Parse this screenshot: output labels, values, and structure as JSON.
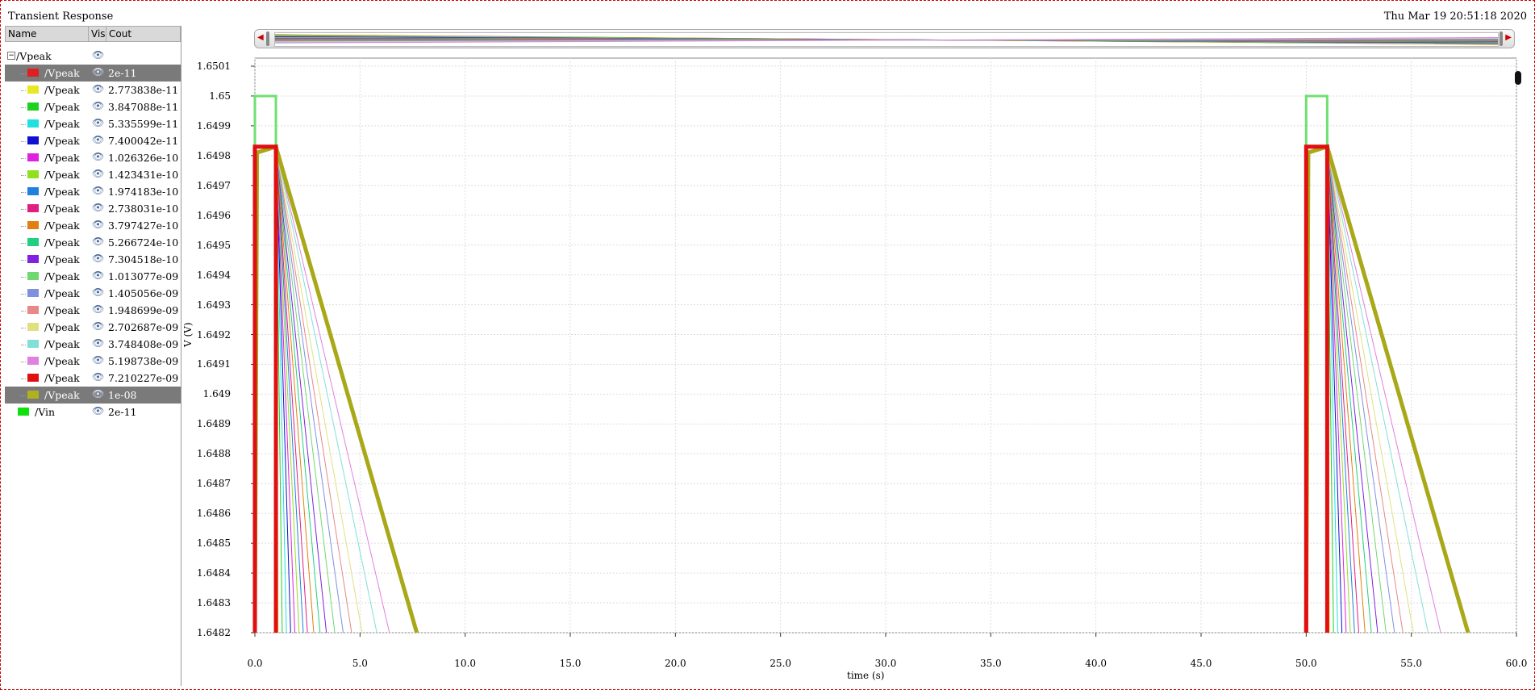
{
  "window": {
    "title": "Transient Response",
    "datetime": "Thu Mar 19 20:51:18 2020"
  },
  "legend": {
    "columns": [
      "Name",
      "Vis",
      "Cout"
    ],
    "group": {
      "label": "/Vpeak"
    },
    "rows": [
      {
        "name": "/Vpeak",
        "value": "2e-11",
        "color": "#e02020",
        "selected": true
      },
      {
        "name": "/Vpeak",
        "value": "2.773838e-11",
        "color": "#e8e820"
      },
      {
        "name": "/Vpeak",
        "value": "3.847088e-11",
        "color": "#20d020"
      },
      {
        "name": "/Vpeak",
        "value": "5.335599e-11",
        "color": "#20e0e0"
      },
      {
        "name": "/Vpeak",
        "value": "7.400042e-11",
        "color": "#1010d0"
      },
      {
        "name": "/Vpeak",
        "value": "1.026326e-10",
        "color": "#e020e0"
      },
      {
        "name": "/Vpeak",
        "value": "1.423431e-10",
        "color": "#90e020"
      },
      {
        "name": "/Vpeak",
        "value": "1.974183e-10",
        "color": "#2080e0"
      },
      {
        "name": "/Vpeak",
        "value": "2.738031e-10",
        "color": "#e02080"
      },
      {
        "name": "/Vpeak",
        "value": "3.797427e-10",
        "color": "#e08010"
      },
      {
        "name": "/Vpeak",
        "value": "5.266724e-10",
        "color": "#20d080"
      },
      {
        "name": "/Vpeak",
        "value": "7.304518e-10",
        "color": "#8020e0"
      },
      {
        "name": "/Vpeak",
        "value": "1.013077e-09",
        "color": "#70d870"
      },
      {
        "name": "/Vpeak",
        "value": "1.405056e-09",
        "color": "#8090e0"
      },
      {
        "name": "/Vpeak",
        "value": "1.948699e-09",
        "color": "#e88888"
      },
      {
        "name": "/Vpeak",
        "value": "2.702687e-09",
        "color": "#e0e080"
      },
      {
        "name": "/Vpeak",
        "value": "3.748408e-09",
        "color": "#80e0d8"
      },
      {
        "name": "/Vpeak",
        "value": "5.198738e-09",
        "color": "#e080e0"
      },
      {
        "name": "/Vpeak",
        "value": "7.210227e-09",
        "color": "#e01010"
      },
      {
        "name": "/Vpeak",
        "value": "1e-08",
        "color": "#b0b020",
        "selected": true
      }
    ],
    "extra": {
      "name": "/Vin",
      "value": "2e-11",
      "color": "#10e010"
    }
  },
  "chart_data": {
    "type": "line",
    "xlabel": "time (s)",
    "ylabel": "V (V)",
    "xlim": [
      0,
      60
    ],
    "ylim": [
      1.6482,
      1.6501
    ],
    "x_ticks": [
      "0.0",
      "5.0",
      "10.0",
      "15.0",
      "20.0",
      "25.0",
      "30.0",
      "35.0",
      "40.0",
      "45.0",
      "50.0",
      "55.0",
      "60.0"
    ],
    "y_ticks": [
      "1.6501",
      "1.65",
      "1.6499",
      "1.6498",
      "1.6497",
      "1.6496",
      "1.6495",
      "1.6494",
      "1.6493",
      "1.6492",
      "1.6491",
      "1.649",
      "1.6489",
      "1.6488",
      "1.6487",
      "1.6486",
      "1.6485",
      "1.6484",
      "1.6483",
      "1.6482"
    ],
    "vin": {
      "name": "/Vin",
      "color": "#70e070",
      "high": 1.65,
      "pulses": [
        [
          0.0,
          1.0
        ],
        [
          50.0,
          51.0
        ]
      ]
    },
    "vpeak_plateau": 1.64983,
    "vpeak_decay_end_times": [
      1.1,
      1.3,
      1.5,
      1.7,
      1.9,
      2.1,
      2.3,
      2.5,
      2.8,
      3.1,
      3.4,
      3.8,
      4.2,
      4.6,
      5.1,
      5.8,
      6.4,
      7.7
    ],
    "grid": true
  }
}
